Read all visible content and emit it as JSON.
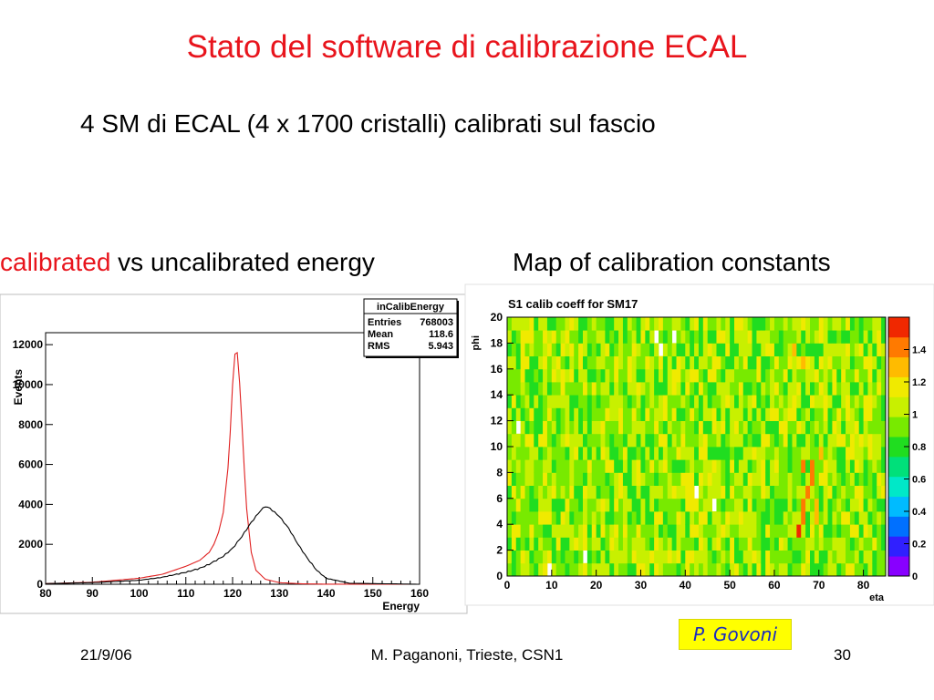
{
  "slide": {
    "title": "Stato del software di calibrazione ECAL",
    "subtitle": "4 SM di ECAL (4 x 1700 cristalli) calibrati sul fascio",
    "left_caption_red": "calibrated",
    "left_caption_rest": " vs uncalibrated energy",
    "right_caption": "Map of calibration constants",
    "author_box": "P. Govoni",
    "footer_date": "21/9/06",
    "footer_center": "M. Paganoni, Trieste, CSN1",
    "page_number": "30"
  },
  "chart_data": [
    {
      "type": "line",
      "title": "",
      "xlabel": "Energy",
      "ylabel": "Events",
      "xlim": [
        80,
        160
      ],
      "ylim": [
        0,
        12600
      ],
      "x_ticks": [
        80,
        90,
        100,
        110,
        120,
        130,
        140,
        150,
        160
      ],
      "y_ticks": [
        0,
        2000,
        4000,
        6000,
        8000,
        10000,
        12000
      ],
      "y_tick_labels": [
        "0",
        "2000",
        "4000",
        "6000",
        "8000",
        "10000",
        "12000"
      ],
      "stats_box": {
        "name": "inCalibEnergy",
        "rows": [
          {
            "label": "Entries",
            "value": "768003"
          },
          {
            "label": "Mean",
            "value": "118.6"
          },
          {
            "label": "RMS",
            "value": "5.943"
          }
        ]
      },
      "series": [
        {
          "color": "#e02020",
          "x": [
            80,
            90,
            100,
            105,
            110,
            113,
            115,
            116,
            117,
            118,
            119,
            119.5,
            120,
            120.3,
            120.6,
            121,
            121.4,
            122,
            122.5,
            123,
            124,
            125,
            127,
            130,
            135,
            140,
            160
          ],
          "values": [
            30,
            100,
            300,
            500,
            900,
            1200,
            1600,
            2000,
            2600,
            3600,
            5800,
            7600,
            10000,
            11000,
            11800,
            11600,
            10500,
            8000,
            5800,
            3800,
            1600,
            700,
            250,
            80,
            20,
            5,
            0
          ]
        },
        {
          "color": "#000000",
          "x": [
            80,
            90,
            100,
            105,
            110,
            113,
            115,
            118,
            120,
            122,
            124,
            126,
            127,
            128,
            130,
            132,
            134,
            136,
            138,
            140,
            145,
            160
          ],
          "values": [
            30,
            80,
            200,
            350,
            600,
            800,
            1000,
            1400,
            1800,
            2400,
            3100,
            3700,
            3900,
            3800,
            3400,
            2800,
            2000,
            1300,
            700,
            300,
            50,
            0
          ]
        }
      ]
    },
    {
      "type": "heatmap",
      "title": "S1 calib coeff for SM17",
      "xlabel": "eta",
      "ylabel": "phi",
      "xlim": [
        0,
        85
      ],
      "ylim": [
        0,
        20
      ],
      "x_ticks": [
        0,
        10,
        20,
        30,
        40,
        50,
        60,
        70,
        80
      ],
      "y_ticks": [
        0,
        2,
        4,
        6,
        8,
        10,
        12,
        14,
        16,
        18,
        20
      ],
      "nx": 85,
      "ny": 20,
      "base_value": 0.9,
      "colorbar": {
        "range": [
          0,
          1.6
        ],
        "ticks": [
          0,
          0.2,
          0.4,
          0.6,
          0.8,
          1,
          1.2,
          1.4
        ],
        "tick_labels": [
          "0",
          "0.2",
          "0.4",
          "0.6",
          "0.8",
          "1",
          "1.2",
          "1.4"
        ],
        "colors": [
          "#8800ff",
          "#3020ff",
          "#0070ff",
          "#00bbff",
          "#00e8c8",
          "#00e07a",
          "#20dd20",
          "#78ea00",
          "#c8f000",
          "#f0ea00",
          "#ffbb00",
          "#ff7a00",
          "#f02800"
        ]
      },
      "hot_cells": [
        {
          "eta": 65,
          "phi": 3,
          "value": 1.52
        },
        {
          "eta": 66,
          "phi": 4,
          "value": 1.45
        },
        {
          "eta": 66,
          "phi": 5,
          "value": 1.45
        },
        {
          "eta": 67,
          "phi": 6,
          "value": 1.4
        },
        {
          "eta": 68,
          "phi": 7,
          "value": 1.45
        },
        {
          "eta": 68,
          "phi": 8,
          "value": 1.4
        },
        {
          "eta": 69,
          "phi": 5,
          "value": 1.35
        },
        {
          "eta": 69,
          "phi": 4,
          "value": 1.3
        },
        {
          "eta": 66,
          "phi": 8,
          "value": 1.4
        },
        {
          "eta": 70,
          "phi": 9,
          "value": 1.25
        },
        {
          "eta": 64,
          "phi": 17,
          "value": 1.25
        },
        {
          "eta": 66,
          "phi": 16,
          "value": 1.28
        }
      ],
      "empty_cells": [
        {
          "eta": 33,
          "phi": 18
        },
        {
          "eta": 37,
          "phi": 18
        },
        {
          "eta": 34,
          "phi": 17
        },
        {
          "eta": 2,
          "phi": 11
        },
        {
          "eta": 42,
          "phi": 6
        },
        {
          "eta": 46,
          "phi": 5
        },
        {
          "eta": 9,
          "phi": 0
        },
        {
          "eta": 17,
          "phi": 1
        }
      ]
    }
  ]
}
